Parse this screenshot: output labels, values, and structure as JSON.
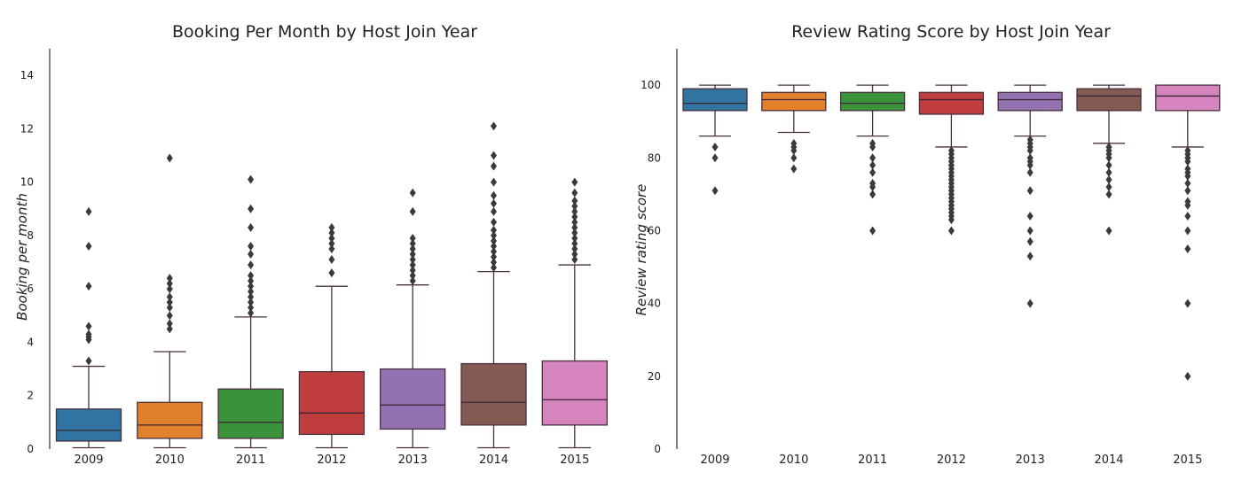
{
  "chart_data": [
    {
      "type": "box",
      "title": "Booking Per Month by Host Join Year",
      "xlabel": "",
      "ylabel": "Booking per month",
      "ylim": [
        0,
        15
      ],
      "yticks": [
        0,
        2,
        4,
        6,
        8,
        10,
        12,
        14
      ],
      "grid": false,
      "categories": [
        "2009",
        "2010",
        "2011",
        "2012",
        "2013",
        "2014",
        "2015"
      ],
      "colors": [
        "#3274a1",
        "#e1812c",
        "#3a923a",
        "#c03d3e",
        "#9372b2",
        "#845b53",
        "#d684bd"
      ],
      "boxes": [
        {
          "whislo": 0.05,
          "q1": 0.3,
          "med": 0.7,
          "q3": 1.5,
          "whishi": 3.1,
          "fliers": [
            3.3,
            4.1,
            4.2,
            4.3,
            4.6,
            6.1,
            7.6,
            8.9
          ]
        },
        {
          "whislo": 0.05,
          "q1": 0.4,
          "med": 0.9,
          "q3": 1.75,
          "whishi": 3.65,
          "fliers": [
            4.5,
            4.7,
            5.0,
            5.3,
            5.5,
            5.7,
            6.0,
            6.2,
            6.4,
            10.9
          ]
        },
        {
          "whislo": 0.05,
          "q1": 0.4,
          "med": 1.0,
          "q3": 2.25,
          "whishi": 4.95,
          "fliers": [
            5.1,
            5.3,
            5.5,
            5.7,
            5.9,
            6.1,
            6.3,
            6.5,
            6.9,
            7.3,
            7.6,
            8.3,
            9.0,
            10.1
          ]
        },
        {
          "whislo": 0.05,
          "q1": 0.55,
          "med": 1.35,
          "q3": 2.9,
          "whishi": 6.1,
          "fliers": [
            6.6,
            7.1,
            7.5,
            7.7,
            7.9,
            8.1,
            8.3
          ]
        },
        {
          "whislo": 0.05,
          "q1": 0.75,
          "med": 1.65,
          "q3": 3.0,
          "whishi": 6.15,
          "fliers": [
            6.3,
            6.5,
            6.7,
            6.9,
            7.1,
            7.3,
            7.5,
            7.7,
            7.9,
            8.9,
            9.6
          ]
        },
        {
          "whislo": 0.05,
          "q1": 0.9,
          "med": 1.75,
          "q3": 3.2,
          "whishi": 6.65,
          "fliers": [
            6.8,
            7.0,
            7.2,
            7.4,
            7.6,
            7.8,
            8.0,
            8.2,
            8.5,
            8.9,
            9.2,
            9.5,
            10.0,
            10.6,
            11.0,
            12.1
          ]
        },
        {
          "whislo": 0.05,
          "q1": 0.9,
          "med": 1.85,
          "q3": 3.3,
          "whishi": 6.9,
          "fliers": [
            7.1,
            7.3,
            7.5,
            7.7,
            7.9,
            8.1,
            8.3,
            8.5,
            8.7,
            8.9,
            9.1,
            9.3,
            9.6,
            10.0
          ]
        }
      ]
    },
    {
      "type": "box",
      "title": "Review Rating Score by Host Join Year",
      "xlabel": "",
      "ylabel": "Review rating score",
      "ylim": [
        0,
        110
      ],
      "yticks": [
        0,
        20,
        40,
        60,
        80,
        100
      ],
      "grid": false,
      "categories": [
        "2009",
        "2010",
        "2011",
        "2012",
        "2013",
        "2014",
        "2015"
      ],
      "colors": [
        "#3274a1",
        "#e1812c",
        "#3a923a",
        "#c03d3e",
        "#9372b2",
        "#845b53",
        "#d684bd"
      ],
      "boxes": [
        {
          "whislo": 86,
          "q1": 93,
          "med": 95,
          "q3": 99,
          "whishi": 100,
          "fliers": [
            83,
            80,
            71
          ]
        },
        {
          "whislo": 87,
          "q1": 93,
          "med": 96,
          "q3": 98,
          "whishi": 100,
          "fliers": [
            84,
            83,
            82,
            80,
            77
          ]
        },
        {
          "whislo": 86,
          "q1": 93,
          "med": 95,
          "q3": 98,
          "whishi": 100,
          "fliers": [
            84,
            83,
            80,
            78,
            76,
            73,
            72,
            70,
            60
          ]
        },
        {
          "whislo": 83,
          "q1": 92,
          "med": 96,
          "q3": 98,
          "whishi": 100,
          "fliers": [
            82,
            81,
            80,
            79,
            78,
            77,
            76,
            75,
            74,
            73,
            72,
            71,
            70,
            69,
            68,
            67,
            66,
            65,
            64,
            63,
            60
          ]
        },
        {
          "whislo": 86,
          "q1": 93,
          "med": 96,
          "q3": 98,
          "whishi": 100,
          "fliers": [
            85,
            84,
            83,
            82,
            80,
            79,
            78,
            76,
            71,
            64,
            60,
            57,
            53,
            40
          ]
        },
        {
          "whislo": 84,
          "q1": 93,
          "med": 97,
          "q3": 99,
          "whishi": 100,
          "fliers": [
            83,
            82,
            81,
            80,
            78,
            76,
            74,
            72,
            70,
            60
          ]
        },
        {
          "whislo": 83,
          "q1": 93,
          "med": 97,
          "q3": 100,
          "whishi": 100,
          "fliers": [
            82,
            81,
            80,
            79,
            77,
            76,
            75,
            73,
            71,
            68,
            67,
            64,
            60,
            55,
            40,
            20
          ]
        }
      ]
    }
  ]
}
